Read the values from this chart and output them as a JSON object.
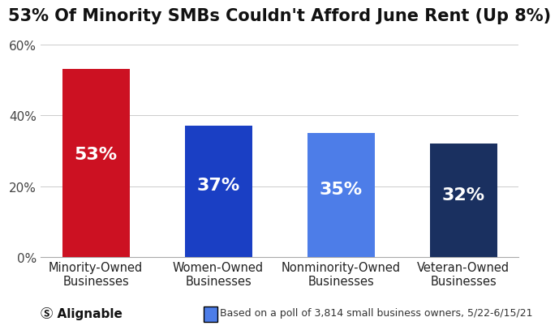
{
  "title": "53% Of Minority SMBs Couldn't Afford June Rent (Up 8%)",
  "categories": [
    "Minority-Owned\nBusinesses",
    "Women-Owned\nBusinesses",
    "Nonminority-Owned\nBusinesses",
    "Veteran-Owned\nBusinesses"
  ],
  "values": [
    53,
    37,
    35,
    32
  ],
  "bar_colors": [
    "#cc1122",
    "#1a3fc4",
    "#4d7de8",
    "#1a3060"
  ],
  "label_color": "#ffffff",
  "yticks": [
    0,
    20,
    40,
    60
  ],
  "ytick_labels": [
    "0%",
    "20%",
    "40%",
    "60%"
  ],
  "ylim": [
    0,
    63
  ],
  "value_labels": [
    "53%",
    "37%",
    "35%",
    "32%"
  ],
  "footnote": "Based on a poll of 3,814 small business owners, 5/22-6/15/21",
  "footnote_box_color": "#4d7de8",
  "brand": "Alignable",
  "background_color": "#ffffff",
  "title_fontsize": 15,
  "label_fontsize": 15,
  "tick_fontsize": 11,
  "footnote_fontsize": 9,
  "bar_label_fontsize": 16
}
